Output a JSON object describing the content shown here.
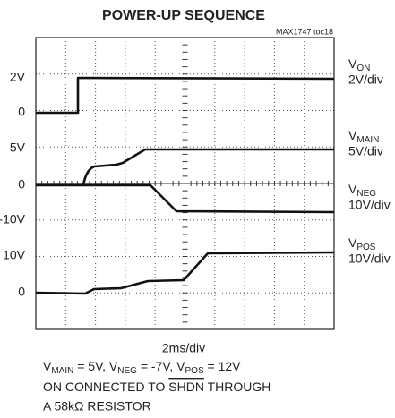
{
  "scope": {
    "title": "POWER-UP SEQUENCE",
    "figure_id": "MAX1747 toc18",
    "left_labels": [
      "2V",
      "0",
      "5V",
      "0",
      "-10V",
      "10V",
      "0"
    ],
    "channels": [
      {
        "name": "V",
        "sub": "ON",
        "scale": "2V/div"
      },
      {
        "name": "V",
        "sub": "MAIN",
        "scale": "5V/div"
      },
      {
        "name": "V",
        "sub": "NEG",
        "scale": "10V/div"
      },
      {
        "name": "V",
        "sub": "POS",
        "scale": "10V/div"
      }
    ],
    "time_scale": "2ms/div",
    "conditions": [
      "V",
      "MAIN",
      " = 5V, V",
      "NEG",
      " = -7V, V",
      "POS",
      " = 12V"
    ],
    "note_line1": [
      "ON CONNECTED TO ",
      "SHDN",
      " THROUGH"
    ],
    "note_line2": "A 58kΩ RESISTOR"
  }
}
